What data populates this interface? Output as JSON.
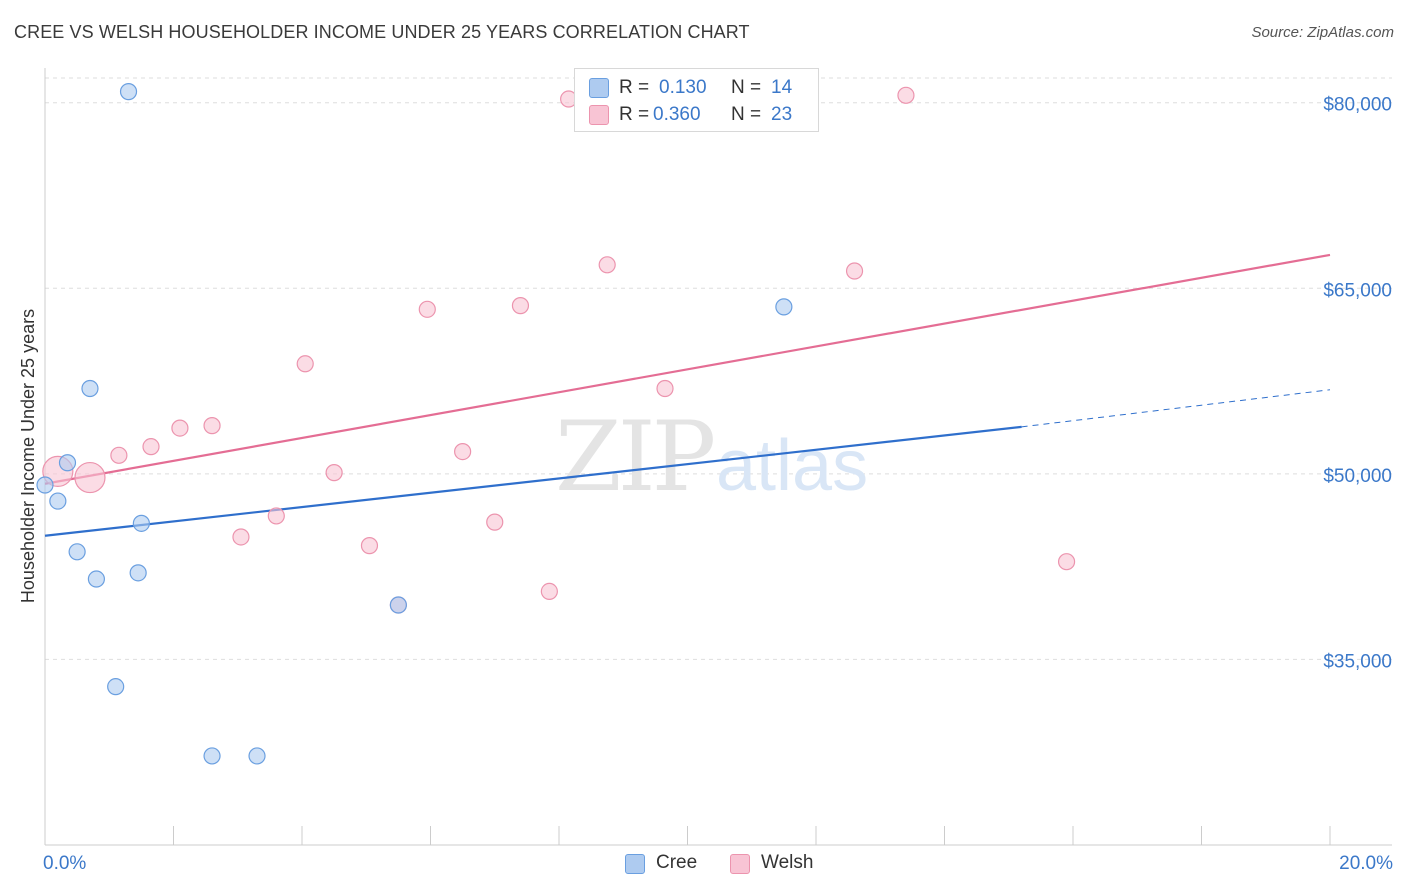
{
  "header": {
    "title": "CREE VS WELSH HOUSEHOLDER INCOME UNDER 25 YEARS CORRELATION CHART",
    "source": "Source: ZipAtlas.com"
  },
  "legend_stats": [
    {
      "r_label": "R =",
      "r_value": "0.130",
      "n_label": "N =",
      "n_value": "14"
    },
    {
      "r_label": "R =",
      "r_value": "0.360",
      "n_label": "N =",
      "n_value": "23"
    }
  ],
  "bottom_legend": {
    "cree": "Cree",
    "welsh": "Welsh"
  },
  "watermark": {
    "zip": "ZIP",
    "atlas": "atlas"
  },
  "colors": {
    "cree_fill": "#aecbf0",
    "cree_stroke": "#6a9fe0",
    "cree_line": "#2f6fcc",
    "welsh_fill": "#f8c4d4",
    "welsh_stroke": "#ec94ae",
    "welsh_line": "#e46d94",
    "axis_label": "#3b78c9",
    "grid": "#dedede"
  },
  "chart_data": {
    "type": "scatter",
    "title": "CREE VS WELSH HOUSEHOLDER INCOME UNDER 25 YEARS CORRELATION CHART",
    "xlabel": "",
    "ylabel": "Householder Income Under 25 years",
    "xlim": [
      0,
      20
    ],
    "ylim": [
      20000,
      82000
    ],
    "x_tick_labels": [
      "0.0%",
      "20.0%"
    ],
    "y_ticks": [
      35000,
      50000,
      65000,
      80000
    ],
    "y_tick_labels": [
      "$35,000",
      "$50,000",
      "$65,000",
      "$80,000"
    ],
    "series": [
      {
        "name": "Cree",
        "points": [
          {
            "x": 1.3,
            "y": 80900,
            "big": false
          },
          {
            "x": 0.0,
            "y": 49100,
            "big": false
          },
          {
            "x": 0.35,
            "y": 50900,
            "big": false
          },
          {
            "x": 0.2,
            "y": 47800,
            "big": false
          },
          {
            "x": 0.7,
            "y": 56900,
            "big": false
          },
          {
            "x": 0.5,
            "y": 43700,
            "big": false
          },
          {
            "x": 0.8,
            "y": 41500,
            "big": false
          },
          {
            "x": 1.5,
            "y": 46000,
            "big": false
          },
          {
            "x": 1.45,
            "y": 42000,
            "big": false
          },
          {
            "x": 1.1,
            "y": 32800,
            "big": false
          },
          {
            "x": 2.6,
            "y": 27200,
            "big": false
          },
          {
            "x": 3.3,
            "y": 27200,
            "big": false
          },
          {
            "x": 5.5,
            "y": 39400,
            "big": false
          },
          {
            "x": 11.5,
            "y": 63500,
            "big": false
          }
        ],
        "trend": {
          "x": [
            0,
            15.2
          ],
          "y": [
            45000,
            53800
          ],
          "dash_x": [
            15.2,
            20
          ],
          "dash_y": [
            53800,
            56800
          ]
        }
      },
      {
        "name": "Welsh",
        "points": [
          {
            "x": 0.2,
            "y": 50200,
            "big": true
          },
          {
            "x": 0.7,
            "y": 49700,
            "big": true
          },
          {
            "x": 1.15,
            "y": 51500,
            "big": false
          },
          {
            "x": 1.65,
            "y": 52200,
            "big": false
          },
          {
            "x": 2.1,
            "y": 53700,
            "big": false
          },
          {
            "x": 2.6,
            "y": 53900,
            "big": false
          },
          {
            "x": 3.05,
            "y": 44900,
            "big": false
          },
          {
            "x": 3.6,
            "y": 46600,
            "big": false
          },
          {
            "x": 4.05,
            "y": 58900,
            "big": false
          },
          {
            "x": 4.5,
            "y": 50100,
            "big": false
          },
          {
            "x": 5.05,
            "y": 44200,
            "big": false
          },
          {
            "x": 5.5,
            "y": 39400,
            "big": false
          },
          {
            "x": 5.95,
            "y": 63300,
            "big": false
          },
          {
            "x": 6.5,
            "y": 51800,
            "big": false
          },
          {
            "x": 7.0,
            "y": 46100,
            "big": false
          },
          {
            "x": 7.4,
            "y": 63600,
            "big": false
          },
          {
            "x": 7.85,
            "y": 40500,
            "big": false
          },
          {
            "x": 8.15,
            "y": 80300,
            "big": false
          },
          {
            "x": 8.75,
            "y": 66900,
            "big": false
          },
          {
            "x": 9.65,
            "y": 56900,
            "big": false
          },
          {
            "x": 12.6,
            "y": 66400,
            "big": false
          },
          {
            "x": 13.4,
            "y": 80600,
            "big": false
          },
          {
            "x": 15.9,
            "y": 42900,
            "big": false
          }
        ],
        "trend": {
          "x": [
            0,
            20
          ],
          "y": [
            49200,
            67700
          ]
        }
      }
    ],
    "legend": "top-center",
    "grid": true
  }
}
